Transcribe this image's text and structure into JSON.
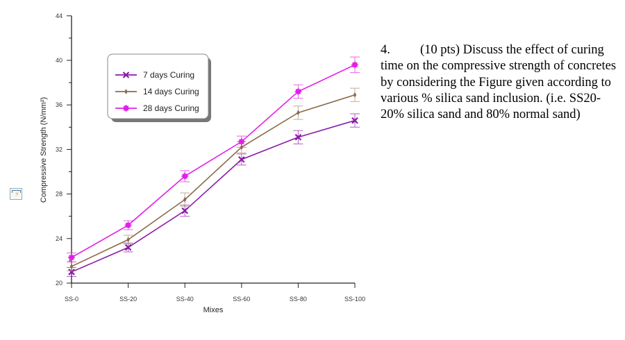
{
  "chart_data": {
    "type": "line",
    "xlabel": "Mixes",
    "ylabel": "Compressive Strength (N/mm²)",
    "categories": [
      "SS-0",
      "SS-20",
      "SS-40",
      "SS-60",
      "SS-80",
      "SS-100"
    ],
    "ylim": [
      20,
      44
    ],
    "yticks": [
      20,
      24,
      28,
      32,
      36,
      40,
      44
    ],
    "grid": false,
    "legend_placement": "top-left",
    "series": [
      {
        "name": "7 days Curing",
        "color": "#8a1aa8",
        "marker": "x",
        "values": [
          21.0,
          23.2,
          26.5,
          31.1,
          33.1,
          34.6
        ],
        "error": [
          0.4,
          0.4,
          0.5,
          0.5,
          0.6,
          0.6
        ]
      },
      {
        "name": "14 days Curing",
        "color": "#8b6a4a",
        "marker": "diamond",
        "values": [
          21.5,
          23.9,
          27.5,
          32.2,
          35.3,
          36.9
        ],
        "error": [
          0.4,
          0.4,
          0.6,
          0.5,
          0.6,
          0.6
        ]
      },
      {
        "name": "28 days Curing",
        "color": "#e31ee8",
        "marker": "star",
        "values": [
          22.3,
          25.2,
          29.6,
          32.7,
          37.2,
          39.6
        ],
        "error": [
          0.4,
          0.4,
          0.5,
          0.5,
          0.6,
          0.7
        ]
      }
    ]
  },
  "question": {
    "number": "4.",
    "text": "(10 pts) Discuss the effect of curing time on the compressive strength of concretes by considering the Figure given according to various % silica sand inclusion. (i.e. SS20-20% silica sand and 80% normal sand)"
  },
  "icons": {
    "side_icon": "lightning-note-icon"
  }
}
